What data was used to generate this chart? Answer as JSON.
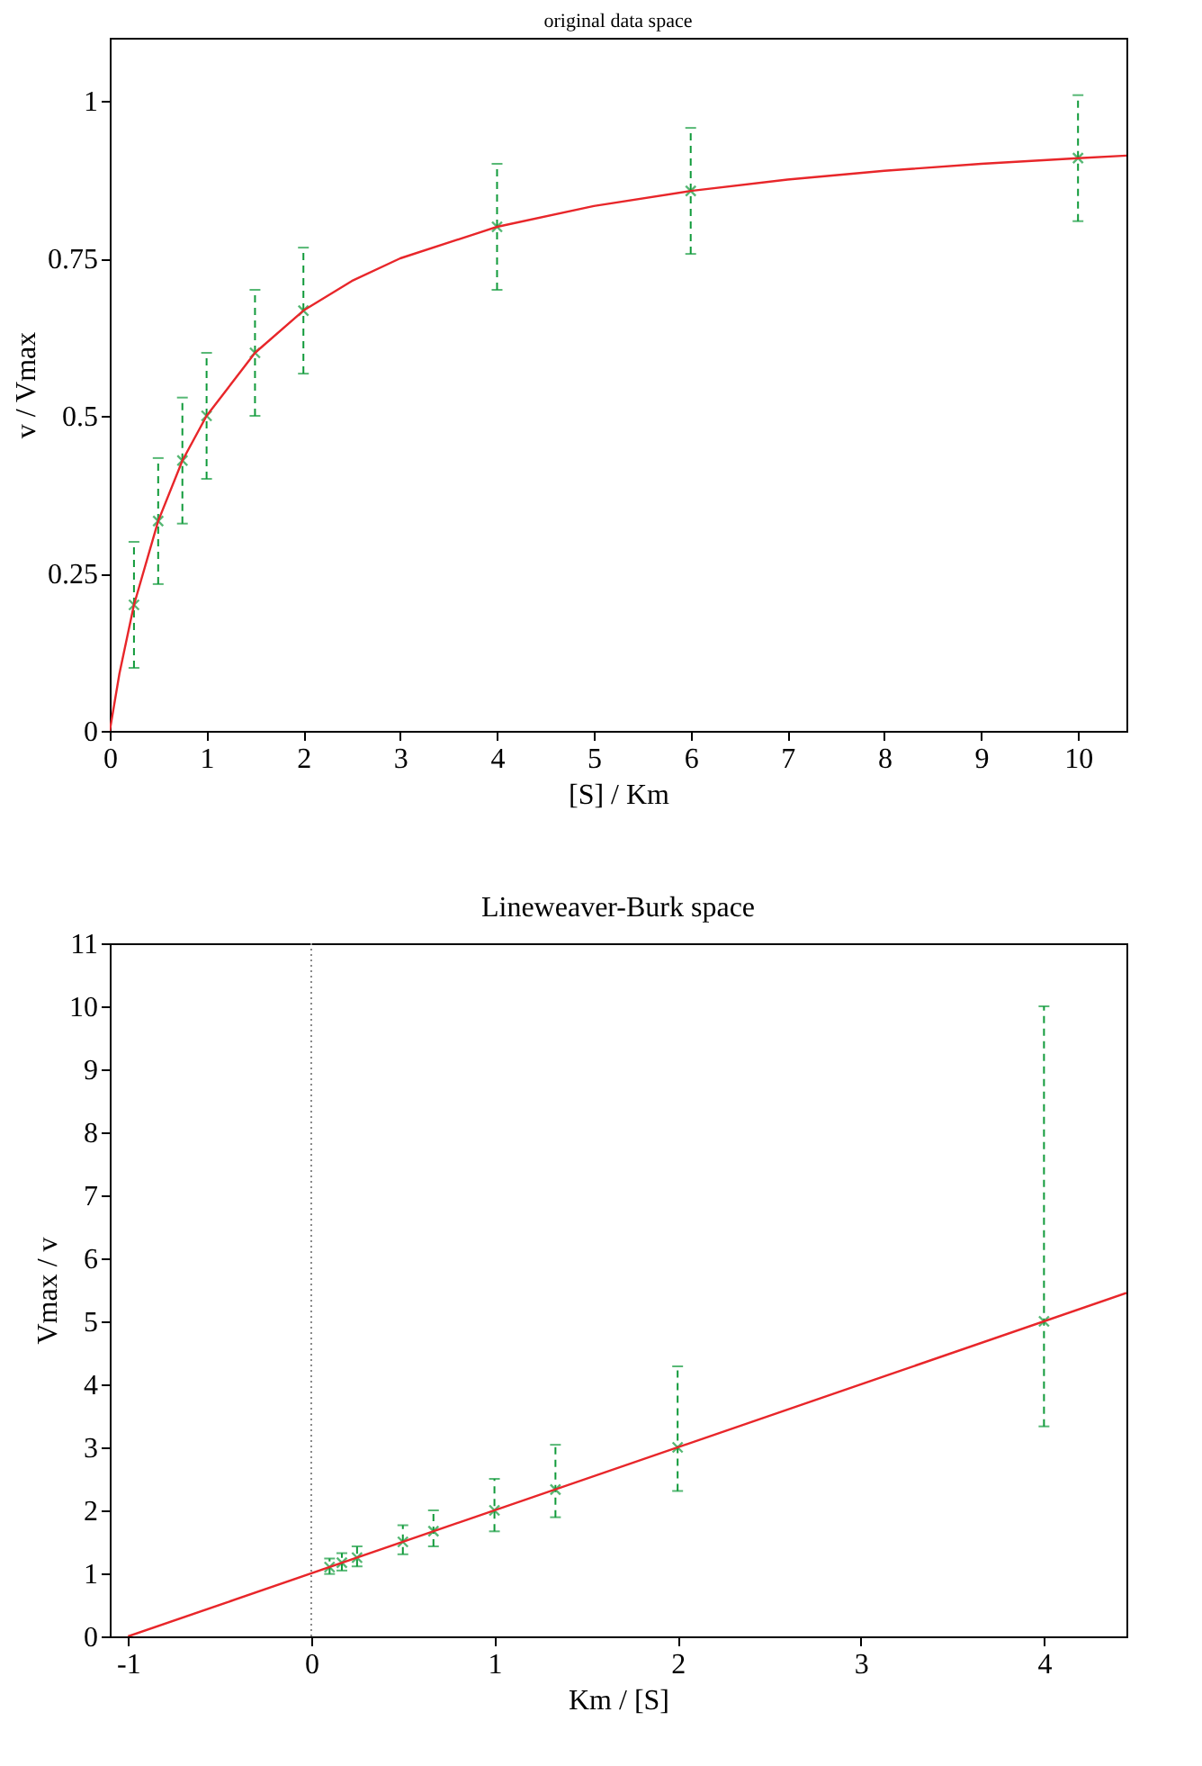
{
  "chart_data": [
    {
      "type": "scatter",
      "title": "original data space",
      "xlabel": "[S] / Km",
      "ylabel": "v / Vmax",
      "xlim": [
        0,
        10.5
      ],
      "ylim": [
        0,
        1.1
      ],
      "xticks": [
        0,
        1,
        2,
        3,
        4,
        5,
        6,
        7,
        8,
        9,
        10
      ],
      "yticks": [
        0,
        0.25,
        0.5,
        0.75,
        1
      ],
      "grid": false,
      "series": [
        {
          "marker": "cross",
          "color": "#109a3a",
          "x": [
            0.25,
            0.5,
            0.75,
            1,
            1.5,
            2,
            4,
            6,
            10
          ],
          "values": [
            0.2,
            0.333,
            0.429,
            0.5,
            0.6,
            0.667,
            0.8,
            0.857,
            0.909
          ],
          "errors": [
            0.1,
            0.1,
            0.1,
            0.1,
            0.1,
            0.1,
            0.1,
            0.1,
            0.1
          ]
        },
        {
          "type": "line",
          "color": "#e8262a",
          "x": [
            0,
            0.1,
            0.25,
            0.5,
            0.75,
            1,
            1.5,
            2,
            2.5,
            3,
            4,
            5,
            6,
            7,
            8,
            9,
            10,
            10.5
          ],
          "values": [
            0,
            0.091,
            0.2,
            0.333,
            0.429,
            0.5,
            0.6,
            0.667,
            0.714,
            0.75,
            0.8,
            0.833,
            0.857,
            0.875,
            0.889,
            0.9,
            0.909,
            0.913
          ]
        }
      ]
    },
    {
      "type": "scatter",
      "title": "Lineweaver-Burk space",
      "xlabel": "Km / [S]",
      "ylabel": "Vmax / v",
      "xlim": [
        -1.1,
        4.45
      ],
      "ylim": [
        0,
        11
      ],
      "xticks": [
        -1,
        0,
        1,
        2,
        3,
        4
      ],
      "yticks": [
        0,
        1,
        2,
        3,
        4,
        5,
        6,
        7,
        8,
        9,
        10,
        11
      ],
      "grid": false,
      "ref_lines": [
        {
          "axis": "x",
          "value": 0,
          "color": "#888888",
          "line_style": "dotted"
        }
      ],
      "series": [
        {
          "marker": "cross",
          "color": "#109a3a",
          "x": [
            4,
            2,
            1.333,
            1,
            0.667,
            0.5,
            0.25,
            0.167,
            0.1
          ],
          "values": [
            5,
            3,
            2.33,
            2,
            1.67,
            1.5,
            1.25,
            1.17,
            1.1
          ],
          "errors": [
            [
              3.333,
              10
            ],
            [
              2.308,
              4.286
            ],
            [
              1.891,
              3.041
            ],
            [
              1.667,
              2.5
            ],
            [
              1.429,
              2
            ],
            [
              1.303,
              1.764
            ],
            [
              1.111,
              1.429
            ],
            [
              1.045,
              1.321
            ],
            [
              0.991,
              1.236
            ]
          ]
        },
        {
          "type": "line",
          "color": "#e8262a",
          "x": [
            -1,
            4.45
          ],
          "values": [
            0,
            5.45
          ]
        }
      ]
    }
  ]
}
